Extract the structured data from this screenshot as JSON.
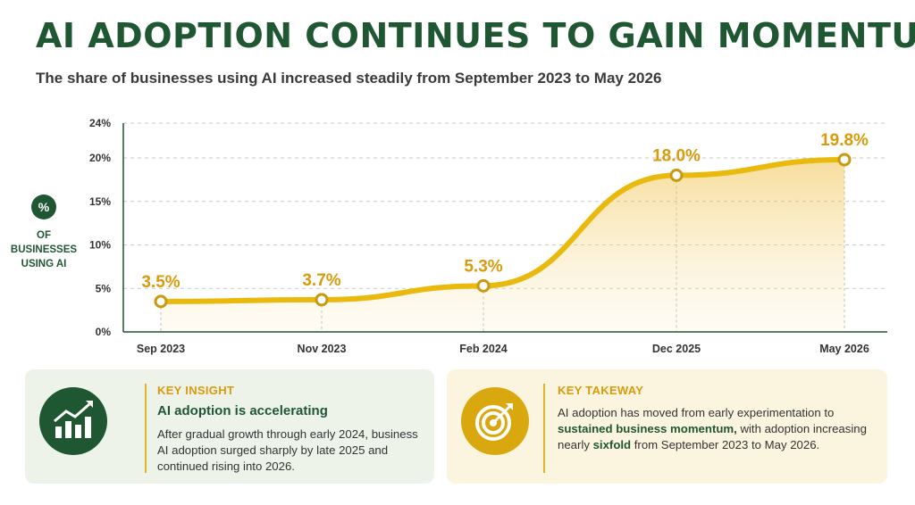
{
  "header": {
    "title": "AI ADOPTION CONTINUES TO GAIN MOMENTUM",
    "subtitle": "The share of businesses using AI increased steadily from September 2023 to May 2026"
  },
  "y_axis_label": {
    "badge": "%",
    "text": "OF\nBUSINESSES\nUSING AI"
  },
  "colors": {
    "brand_green": "#1f5732",
    "accent_gold": "#e9b90d",
    "label_gold": "#d99a0c"
  },
  "chart_data": {
    "type": "area",
    "title": "AI ADOPTION CONTINUES TO GAIN MOMENTUM",
    "subtitle": "The share of businesses using AI increased steadily from September 2023 to May 2026",
    "ylabel": "% OF BUSINESSES USING AI",
    "xlabel": "",
    "categories": [
      "Sep 2023",
      "Nov 2023",
      "Feb 2024",
      "Dec 2025",
      "May 2026"
    ],
    "series": [
      {
        "values": [
          3.5,
          3.7,
          5.3,
          18.0,
          19.8
        ],
        "labels": [
          "3.5%",
          "3.7%",
          "5.3%",
          "18.0%",
          "19.8%"
        ]
      }
    ],
    "ylim": [
      0,
      24
    ],
    "yticks": [
      0,
      5,
      10,
      15,
      20,
      24
    ],
    "ytick_labels": [
      "0%",
      "5%",
      "10%",
      "15%",
      "20%",
      "24%"
    ],
    "grid": true,
    "legend": "none"
  },
  "insight_card": {
    "icon": "growth-chart-icon",
    "heading": "KEY INSIGHT",
    "subheading": "AI adoption is accelerating",
    "body": "After gradual growth through early 2024, business AI adoption surged sharply by late 2025 and continued rising into 2026."
  },
  "takeaway_card": {
    "icon": "target-icon",
    "heading": "KEY TAKEWAY",
    "body_pre": "AI adoption has moved from early experimentation to",
    "body_bold1": "sustained business momentum,",
    "body_mid": " with adoption increasing nearly ",
    "body_bold2": "sixfold",
    "body_post": " from September 2023 to May 2026."
  }
}
